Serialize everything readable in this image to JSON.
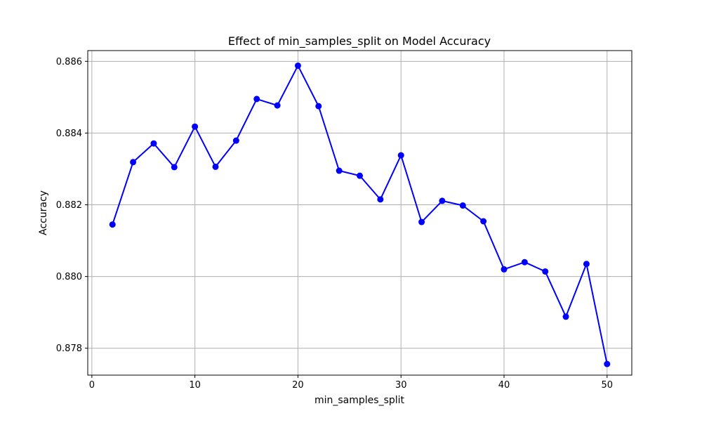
{
  "chart_data": {
    "type": "line",
    "title": "Effect of min_samples_split on Model Accuracy",
    "xlabel": "min_samples_split",
    "ylabel": "Accuracy",
    "xlim": [
      -0.4,
      52.4
    ],
    "ylim": [
      0.87725,
      0.8863
    ],
    "grid": true,
    "x_ticks": [
      0,
      10,
      20,
      30,
      40,
      50
    ],
    "x_tick_labels": [
      "0",
      "10",
      "20",
      "30",
      "40",
      "50"
    ],
    "y_ticks": [
      0.878,
      0.88,
      0.882,
      0.884,
      0.886
    ],
    "y_tick_labels": [
      "0.878",
      "0.880",
      "0.882",
      "0.884",
      "0.886"
    ],
    "series": [
      {
        "name": "Accuracy",
        "color": "#0000ff",
        "marker": "circle",
        "x": [
          2,
          4,
          6,
          8,
          10,
          12,
          14,
          16,
          18,
          20,
          22,
          24,
          26,
          28,
          30,
          32,
          34,
          36,
          38,
          40,
          42,
          44,
          46,
          48,
          50
        ],
        "values": [
          0.88145,
          0.88319,
          0.88371,
          0.88305,
          0.88418,
          0.88306,
          0.88379,
          0.88495,
          0.88477,
          0.88588,
          0.88475,
          0.88295,
          0.88281,
          0.88215,
          0.88338,
          0.88152,
          0.88211,
          0.88198,
          0.88154,
          0.8802,
          0.8804,
          0.88014,
          0.87888,
          0.88035,
          0.87756
        ]
      }
    ]
  }
}
